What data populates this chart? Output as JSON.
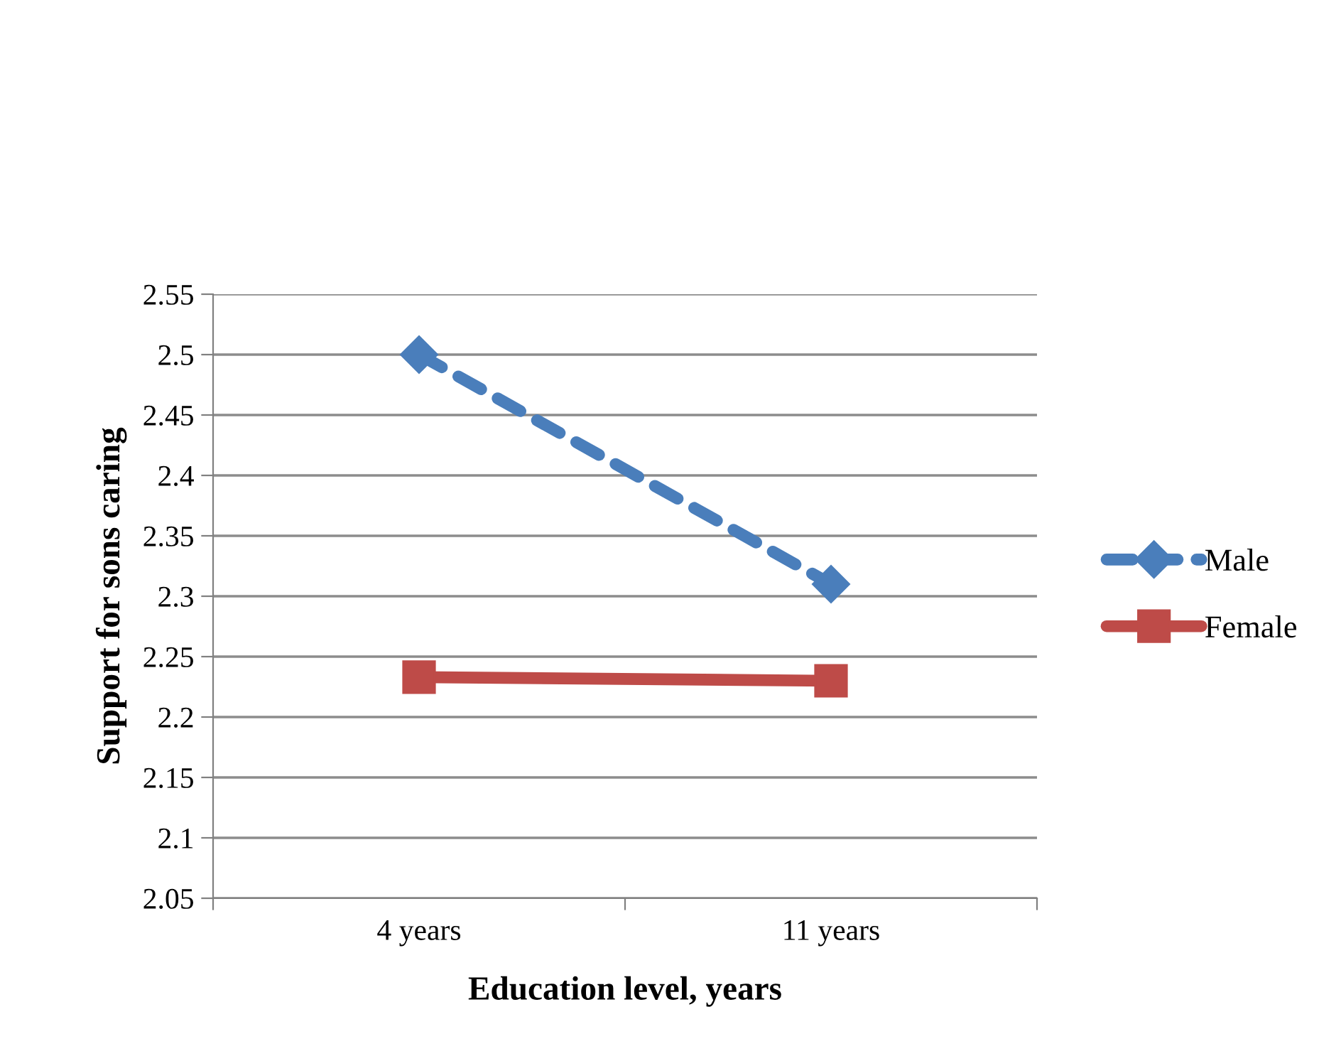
{
  "chart_data": {
    "type": "line",
    "xlabel": "Education level, years",
    "ylabel": "Support for sons caring",
    "categories": [
      "4 years",
      "11 years"
    ],
    "series": [
      {
        "name": "Male",
        "color": "#4a7ebb",
        "values": [
          2.5,
          2.31
        ],
        "line_style": "dashed",
        "marker": "diamond"
      },
      {
        "name": "Female",
        "color": "#be4b48",
        "values": [
          2.233,
          2.23
        ],
        "line_style": "solid",
        "marker": "square"
      }
    ],
    "ylim": [
      2.05,
      2.55
    ],
    "yticks": [
      2.05,
      2.1,
      2.15,
      2.2,
      2.25,
      2.3,
      2.35,
      2.4,
      2.45,
      2.5,
      2.55
    ],
    "grid": "y",
    "legend": "right"
  }
}
